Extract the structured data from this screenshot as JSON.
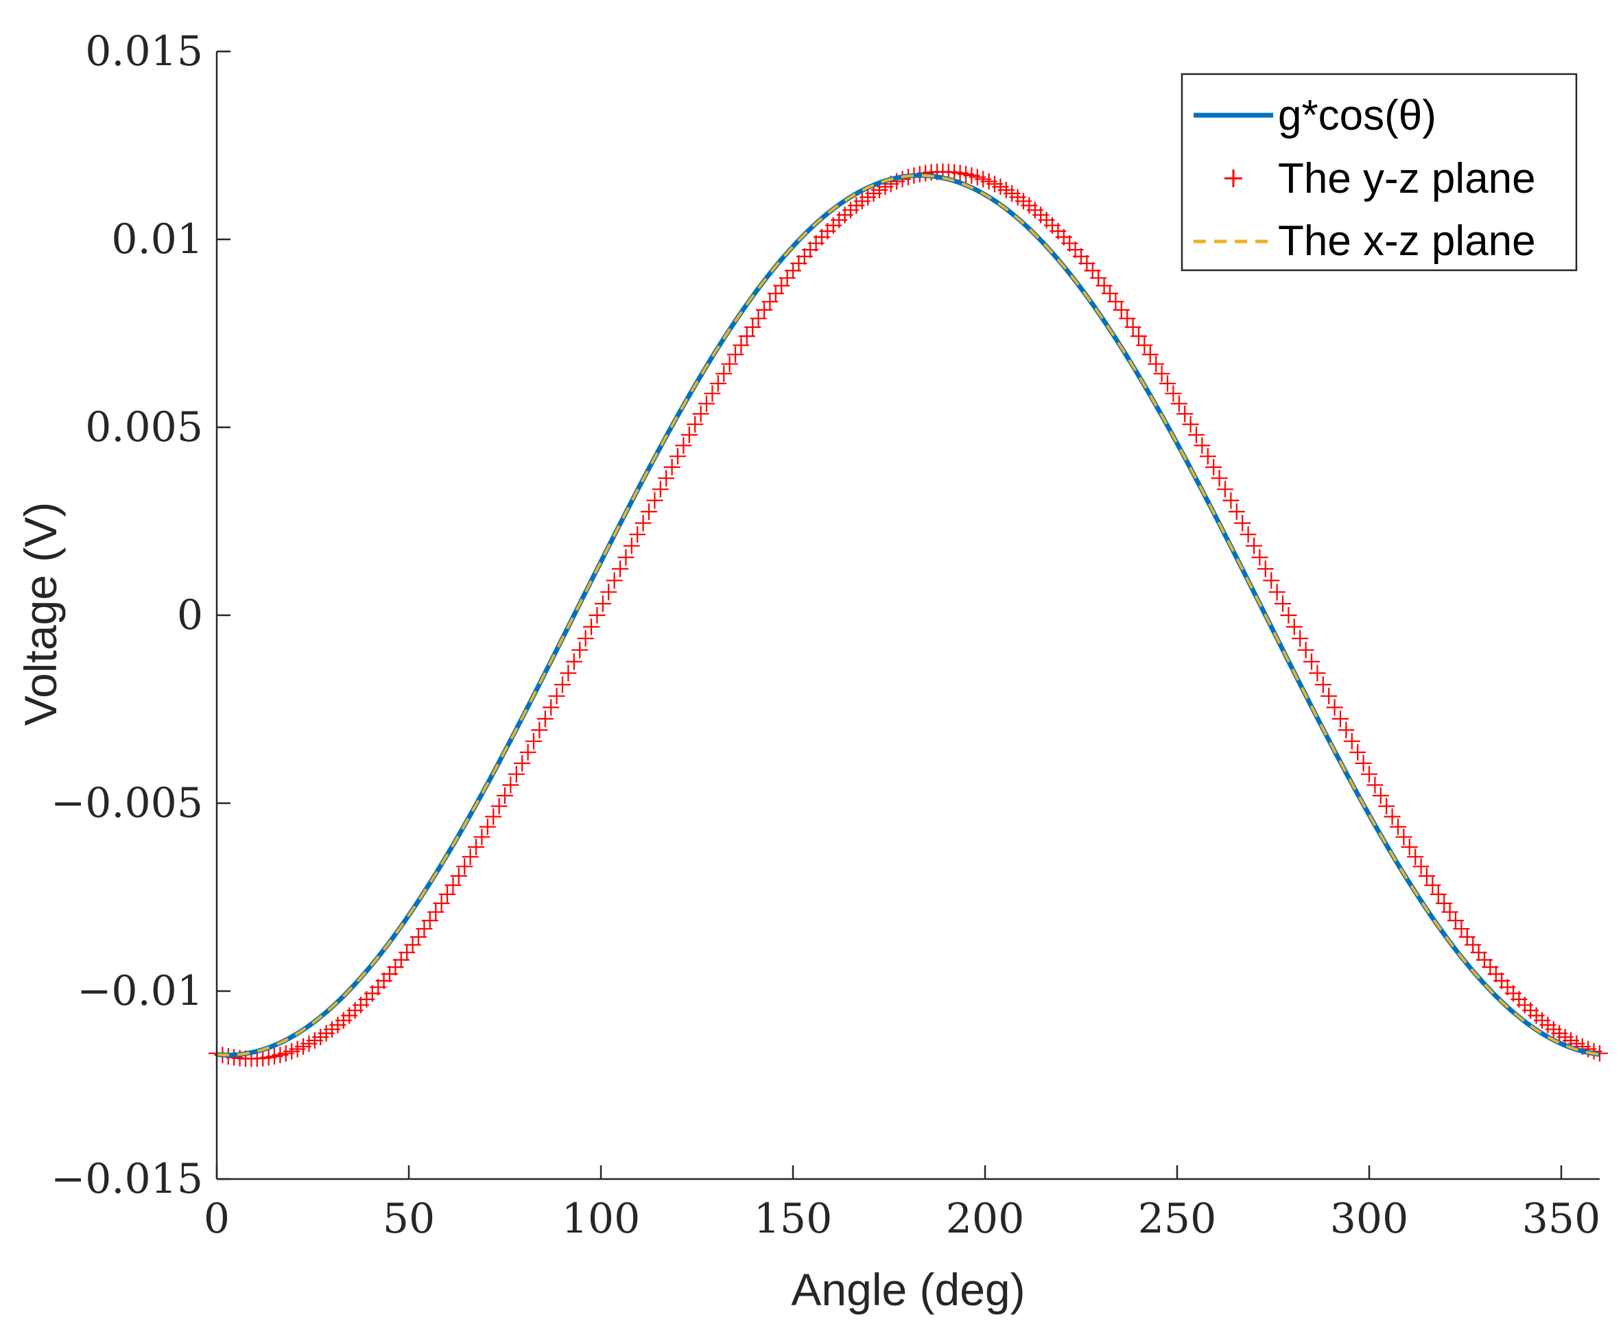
{
  "chart_data": {
    "type": "line",
    "title": "",
    "xlabel": "Angle (deg)",
    "ylabel": "Voltage (V)",
    "xlim": [
      0,
      360
    ],
    "ylim": [
      -0.015,
      0.015
    ],
    "x_ticks": [
      0,
      50,
      100,
      150,
      200,
      250,
      300,
      350
    ],
    "x_tick_labels": [
      "0",
      "50",
      "100",
      "150",
      "200",
      "250",
      "300",
      "350"
    ],
    "y_ticks": [
      -0.015,
      -0.01,
      -0.005,
      0,
      0.005,
      0.01,
      0.015
    ],
    "y_tick_labels": [
      "−0.015",
      "−0.01",
      "−0.005",
      "0",
      "0.005",
      "0.01",
      "0.015"
    ],
    "grid": false,
    "legend_position": "top-right",
    "series": [
      {
        "name": "g*cos(θ)",
        "style": "solid-line",
        "color": "#0072bd",
        "model": {
          "amplitude": 0.0117,
          "peak_deg": 183,
          "sign": -1
        },
        "x_start": 0,
        "x_end": 360,
        "x_step": 1
      },
      {
        "name": "The y-z plane",
        "style": "plus-markers",
        "color": "#ff0000",
        "model": {
          "amplitude": 0.0118,
          "peak_deg": 189,
          "sign": -1
        },
        "x_start": 0,
        "x_end": 360,
        "x_step": 1.5
      },
      {
        "name": "The x-z plane",
        "style": "dashed-line",
        "color": "#edb120",
        "model": {
          "amplitude": 0.0117,
          "peak_deg": 183,
          "sign": -1
        },
        "x_start": 0,
        "x_end": 360,
        "x_step": 1
      }
    ]
  }
}
